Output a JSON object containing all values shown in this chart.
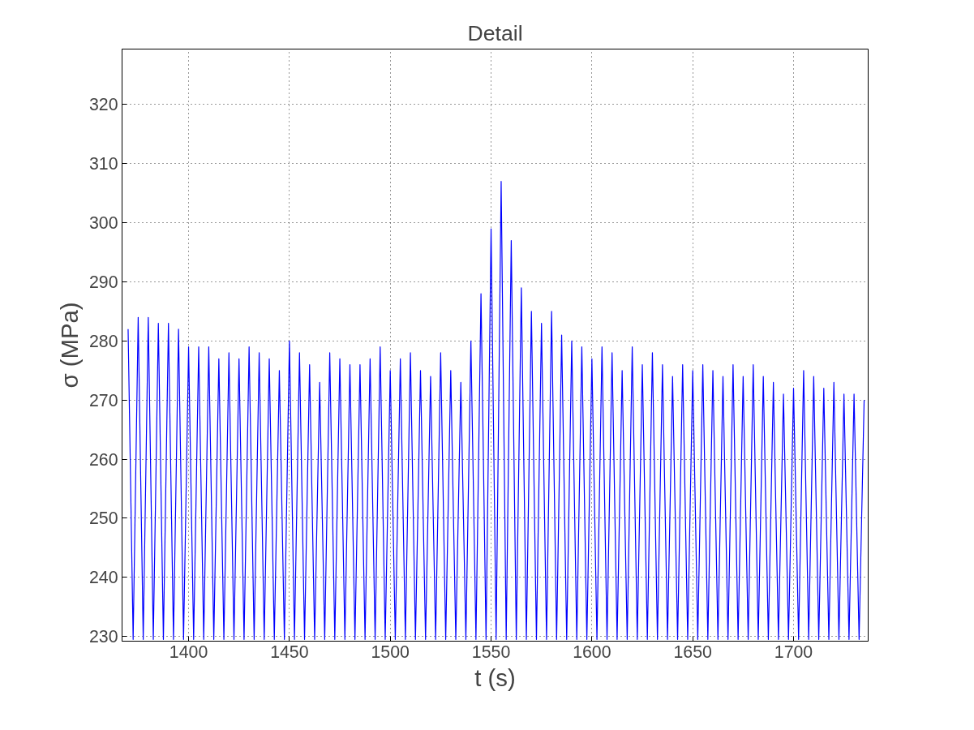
{
  "chart_data": {
    "type": "line",
    "title": "Detail",
    "xlabel": "t (s)",
    "ylabel": "σ (MPa)",
    "xlim": [
      1367,
      1737
    ],
    "ylim": [
      229.2,
      329.4
    ],
    "xticks": [
      1400,
      1450,
      1500,
      1550,
      1600,
      1650,
      1700
    ],
    "yticks": [
      230,
      240,
      250,
      260,
      270,
      280,
      290,
      300,
      310,
      320
    ],
    "grid": true,
    "x": [
      1370,
      1372.5,
      1375,
      1377.5,
      1380,
      1382.5,
      1385,
      1387.5,
      1390,
      1392.5,
      1395,
      1397.5,
      1400,
      1402.5,
      1405,
      1407.5,
      1410,
      1412.5,
      1415,
      1417.5,
      1420,
      1422.5,
      1425,
      1427.5,
      1430,
      1432.5,
      1435,
      1437.5,
      1440,
      1442.5,
      1445,
      1447.5,
      1450,
      1452.5,
      1455,
      1457.5,
      1460,
      1462.5,
      1465,
      1467.5,
      1470,
      1472.5,
      1475,
      1477.5,
      1480,
      1482.5,
      1485,
      1487.5,
      1490,
      1492.5,
      1495,
      1497.5,
      1500,
      1502.5,
      1505,
      1507.5,
      1510,
      1512.5,
      1515,
      1517.5,
      1520,
      1522.5,
      1525,
      1527.5,
      1530,
      1532.5,
      1535,
      1537.5,
      1540,
      1542.5,
      1545,
      1547.5,
      1550,
      1552.5,
      1555,
      1557.5,
      1560,
      1562.5,
      1565,
      1567.5,
      1570,
      1572.5,
      1575,
      1577.5,
      1580,
      1582.5,
      1585,
      1587.5,
      1590,
      1592.5,
      1595,
      1597.5,
      1600,
      1602.5,
      1605,
      1607.5,
      1610,
      1612.5,
      1615,
      1617.5,
      1620,
      1622.5,
      1625,
      1627.5,
      1630,
      1632.5,
      1635,
      1637.5,
      1640,
      1642.5,
      1645,
      1647.5,
      1650,
      1652.5,
      1655,
      1657.5,
      1660,
      1662.5,
      1665,
      1667.5,
      1670,
      1672.5,
      1675,
      1677.5,
      1680,
      1682.5,
      1685,
      1687.5,
      1690,
      1692.5,
      1695,
      1697.5,
      1700,
      1702.5,
      1705,
      1707.5,
      1710,
      1712.5,
      1715,
      1717.5,
      1720,
      1722.5,
      1725,
      1727.5,
      1730,
      1732.5,
      1735
    ],
    "series": [
      {
        "color": "#0000ff",
        "line_style": "solid",
        "values": [
          282,
          229.5,
          284,
          229.5,
          284,
          229.5,
          283,
          229.5,
          283,
          229.5,
          282,
          229.5,
          279,
          229.5,
          279,
          229.5,
          279,
          229.5,
          277,
          229.5,
          278,
          229.5,
          277,
          229.5,
          279,
          229.5,
          278,
          229.5,
          277,
          229.5,
          275,
          229.5,
          280,
          229.5,
          278,
          229.5,
          276,
          229.5,
          273,
          229.5,
          278,
          229.5,
          277,
          229.5,
          276,
          229.5,
          276,
          229.5,
          277,
          229.5,
          279,
          229.5,
          275,
          229.5,
          277,
          229.5,
          278,
          229.5,
          275,
          229.5,
          274,
          229.5,
          278,
          229.5,
          275,
          229.5,
          273,
          229.5,
          280,
          229.5,
          288,
          229.5,
          299,
          229.5,
          307,
          229.5,
          297,
          229.5,
          289,
          229.5,
          285,
          229.5,
          283,
          229.5,
          285,
          229.5,
          281,
          229.5,
          280,
          229.5,
          279,
          229.5,
          277,
          229.5,
          279,
          229.5,
          278,
          229.5,
          275,
          229.5,
          279,
          229.5,
          276,
          229.5,
          278,
          229.5,
          276,
          229.5,
          274,
          229.5,
          276,
          229.5,
          275,
          229.5,
          276,
          229.5,
          275,
          229.5,
          274,
          229.5,
          276,
          229.5,
          274,
          229.5,
          276,
          229.5,
          274,
          229.5,
          273,
          229.5,
          271,
          229.5,
          272,
          229.5,
          275,
          229.5,
          274,
          229.5,
          272,
          229.5,
          273,
          229.5,
          271,
          229.5,
          271,
          229.5,
          270
        ]
      }
    ]
  }
}
